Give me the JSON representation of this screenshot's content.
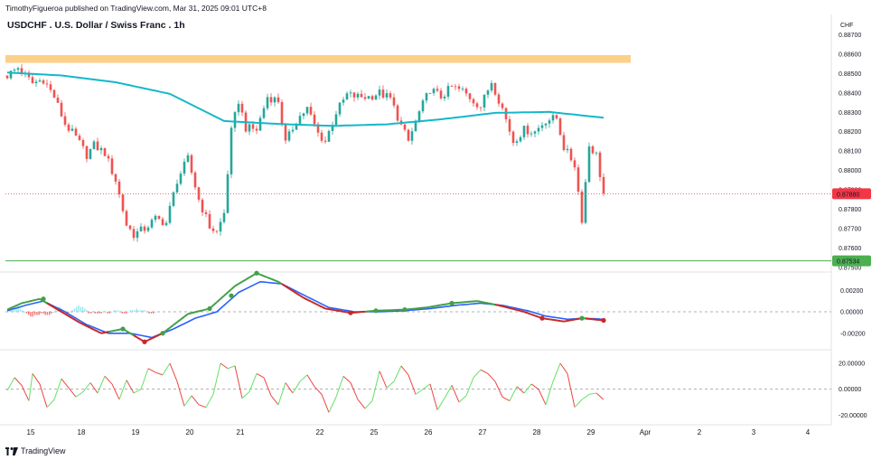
{
  "header": {
    "published_by": "TimothyFigueroa published on TradingView.com, Mar 31, 2025 09:01 UTC+8"
  },
  "chart_title": "USDCHF . U.S. Dollar / Swiss Franc . 1h",
  "footer": {
    "brand": "TradingView"
  },
  "colors": {
    "up": "#26a69a",
    "down": "#ef5350",
    "ma": "#14b8c8",
    "zone": "#fcd08a",
    "support": "#4caf50",
    "price_badge": "#f23645",
    "support_badge": "#4caf50",
    "macd_fast": "#43a047",
    "macd_slow": "#2962ff",
    "macd_red": "#c62828",
    "osc_up": "#66e066",
    "osc_down": "#ef4444"
  },
  "chart_data": [
    {
      "type": "candlestick",
      "title": "USDCHF . U.S. Dollar / Swiss Franc . 1h",
      "currency": "CHF",
      "y_ticks": [
        "0.88700",
        "0.88600",
        "0.88500",
        "0.88400",
        "0.88300",
        "0.88200",
        "0.88100",
        "0.88000",
        "0.87900",
        "0.87800",
        "0.87700",
        "0.87600",
        "0.87500"
      ],
      "ylim": [
        0.87495,
        0.8873
      ],
      "x_labels": [
        "15",
        "18",
        "19",
        "20",
        "21",
        "22",
        "25",
        "26",
        "27",
        "28",
        "29",
        "Apr",
        "2",
        "3",
        "4"
      ],
      "current_price": "0.87880",
      "support_level": "0.87534",
      "resistance_zone": [
        0.88555,
        0.88595
      ],
      "close_path": [
        [
          0,
          0.8849
        ],
        [
          3,
          0.8853
        ],
        [
          7,
          0.8845
        ],
        [
          10,
          0.8847
        ],
        [
          13,
          0.8838
        ],
        [
          16,
          0.8824
        ],
        [
          19,
          0.8817
        ],
        [
          22,
          0.8808
        ],
        [
          24,
          0.8813
        ],
        [
          27,
          0.8809
        ],
        [
          30,
          0.8795
        ],
        [
          33,
          0.8772
        ],
        [
          35,
          0.8767
        ],
        [
          38,
          0.877
        ],
        [
          41,
          0.8775
        ],
        [
          44,
          0.8773
        ],
        [
          47,
          0.8795
        ],
        [
          50,
          0.8806
        ],
        [
          53,
          0.8785
        ],
        [
          56,
          0.8771
        ],
        [
          58,
          0.8768
        ],
        [
          60,
          0.8778
        ],
        [
          62,
          0.882
        ],
        [
          64,
          0.8836
        ],
        [
          66,
          0.8822
        ],
        [
          69,
          0.8821
        ],
        [
          72,
          0.8838
        ],
        [
          75,
          0.8836
        ],
        [
          77,
          0.8814
        ],
        [
          80,
          0.8826
        ],
        [
          83,
          0.8832
        ],
        [
          86,
          0.8819
        ],
        [
          88,
          0.8815
        ],
        [
          91,
          0.883
        ],
        [
          94,
          0.8839
        ],
        [
          97,
          0.8838
        ],
        [
          100,
          0.8838
        ],
        [
          103,
          0.884
        ],
        [
          106,
          0.8837
        ],
        [
          109,
          0.8823
        ],
        [
          111,
          0.8815
        ],
        [
          114,
          0.883
        ],
        [
          117,
          0.8842
        ],
        [
          120,
          0.8838
        ],
        [
          123,
          0.8843
        ],
        [
          126,
          0.8841
        ],
        [
          129,
          0.8836
        ],
        [
          131,
          0.8833
        ],
        [
          134,
          0.8846
        ],
        [
          137,
          0.8832
        ],
        [
          140,
          0.8815
        ],
        [
          143,
          0.8821
        ],
        [
          146,
          0.882
        ],
        [
          149,
          0.8826
        ],
        [
          152,
          0.8827
        ],
        [
          154,
          0.8812
        ],
        [
          157,
          0.8803
        ],
        [
          159,
          0.8775
        ],
        [
          161,
          0.8813
        ],
        [
          163,
          0.8808
        ],
        [
          165,
          0.8788
        ]
      ],
      "ma_path": [
        [
          0,
          0.88505
        ],
        [
          15,
          0.8849
        ],
        [
          30,
          0.88455
        ],
        [
          45,
          0.88395
        ],
        [
          60,
          0.88255
        ],
        [
          75,
          0.8824
        ],
        [
          90,
          0.8823
        ],
        [
          105,
          0.88238
        ],
        [
          120,
          0.88264
        ],
        [
          135,
          0.88297
        ],
        [
          150,
          0.88302
        ],
        [
          165,
          0.88272
        ]
      ],
      "date_positions": [
        0,
        14,
        29,
        44,
        58,
        80,
        95,
        110,
        125,
        140,
        155,
        170,
        185,
        200,
        215
      ]
    },
    {
      "type": "line",
      "title": "",
      "y_ticks": [
        "0.00200",
        "0.00000",
        "-0.00200"
      ],
      "ylim": [
        -0.0032,
        0.0032
      ],
      "series": [
        {
          "values": [
            [
              0,
              0.0002
            ],
            [
              4,
              0.0008
            ],
            [
              9,
              0.0012
            ],
            [
              14,
              0.0002
            ],
            [
              20,
              -0.001
            ],
            [
              26,
              -0.002
            ],
            [
              32,
              -0.0016
            ],
            [
              38,
              -0.0028
            ],
            [
              43,
              -0.002
            ],
            [
              50,
              -0.0002
            ],
            [
              56,
              0.0003
            ],
            [
              63,
              0.0024
            ],
            [
              69,
              0.0036
            ],
            [
              75,
              0.0028
            ],
            [
              82,
              0.0013
            ],
            [
              88,
              0.0003
            ],
            [
              95,
              -0.0001
            ],
            [
              102,
              0.0001
            ],
            [
              110,
              0.0002
            ],
            [
              116,
              0.0004
            ],
            [
              123,
              0.0008
            ],
            [
              130,
              0.001
            ],
            [
              136,
              0.0006
            ],
            [
              143,
              0.0
            ],
            [
              148,
              -0.0006
            ],
            [
              154,
              -0.0009
            ],
            [
              159,
              -0.0006
            ],
            [
              165,
              -0.0008
            ]
          ]
        },
        {
          "values": [
            [
              0,
              0.0001
            ],
            [
              5,
              0.0006
            ],
            [
              10,
              0.001
            ],
            [
              16,
              0.0
            ],
            [
              22,
              -0.0012
            ],
            [
              28,
              -0.002
            ],
            [
              34,
              -0.002
            ],
            [
              40,
              -0.0024
            ],
            [
              46,
              -0.0016
            ],
            [
              52,
              -0.0006
            ],
            [
              58,
              0.0
            ],
            [
              64,
              0.0018
            ],
            [
              70,
              0.0028
            ],
            [
              76,
              0.0026
            ],
            [
              83,
              0.0014
            ],
            [
              89,
              0.0004
            ],
            [
              96,
              0.0
            ],
            [
              103,
              0.0
            ],
            [
              110,
              0.0001
            ],
            [
              117,
              0.0003
            ],
            [
              124,
              0.0006
            ],
            [
              131,
              0.0008
            ],
            [
              137,
              0.0006
            ],
            [
              144,
              0.0001
            ],
            [
              149,
              -0.0004
            ],
            [
              155,
              -0.0007
            ],
            [
              160,
              -0.0006
            ],
            [
              165,
              -0.0007
            ]
          ]
        }
      ],
      "histogram": [
        0,
        1,
        1,
        2,
        2,
        3,
        2,
        1,
        0,
        -1,
        -2,
        -3,
        -3,
        -2,
        -2,
        -2,
        -1,
        -1,
        -2,
        -2,
        -2,
        -1,
        0,
        1,
        2,
        3,
        2,
        1,
        -1,
        -1,
        0,
        1,
        2,
        3,
        4,
        3,
        3,
        2,
        1,
        -1,
        -1,
        0,
        -1,
        -1,
        -1,
        -1,
        0,
        0,
        -1,
        -1,
        0,
        1,
        1,
        1,
        0,
        -1,
        -1,
        -1,
        0,
        1,
        1,
        1,
        2,
        1,
        1,
        1,
        1,
        0,
        -1,
        -1,
        -1,
        0
      ],
      "markers": [
        [
          10,
          0.0012
        ],
        [
          32,
          -0.0016
        ],
        [
          38,
          -0.0028
        ],
        [
          43,
          -0.002
        ],
        [
          56,
          0.0003
        ],
        [
          62,
          0.0015
        ],
        [
          69,
          0.0036
        ],
        [
          95,
          -0.0001
        ],
        [
          102,
          0.0001
        ],
        [
          110,
          0.0002
        ],
        [
          123,
          0.0008
        ],
        [
          148,
          -0.0006
        ],
        [
          159,
          -0.0006
        ],
        [
          165,
          -0.0008
        ]
      ]
    },
    {
      "type": "line",
      "title": "",
      "y_ticks": [
        "20.00000",
        "0.00000",
        "-20.00000"
      ],
      "ylim": [
        -24,
        27
      ],
      "series": [
        {
          "values": [
            [
              0,
              -1
            ],
            [
              2,
              9
            ],
            [
              4,
              3
            ],
            [
              6,
              -9
            ],
            [
              7,
              12
            ],
            [
              9,
              4
            ],
            [
              11,
              -14
            ],
            [
              13,
              -8
            ],
            [
              15,
              8
            ],
            [
              17,
              1
            ],
            [
              19,
              -6
            ],
            [
              21,
              -2
            ],
            [
              23,
              5
            ],
            [
              25,
              -3
            ],
            [
              27,
              10
            ],
            [
              29,
              4
            ],
            [
              31,
              -8
            ],
            [
              33,
              7
            ],
            [
              35,
              -3
            ],
            [
              37,
              0
            ],
            [
              39,
              16
            ],
            [
              41,
              13
            ],
            [
              43,
              11
            ],
            [
              45,
              20
            ],
            [
              47,
              6
            ],
            [
              49,
              -13
            ],
            [
              51,
              -5
            ],
            [
              53,
              -12
            ],
            [
              55,
              -14
            ],
            [
              57,
              -4
            ],
            [
              59,
              20
            ],
            [
              61,
              16
            ],
            [
              63,
              18
            ],
            [
              65,
              -7
            ],
            [
              67,
              -2
            ],
            [
              69,
              12
            ],
            [
              71,
              9
            ],
            [
              73,
              -5
            ],
            [
              75,
              -12
            ],
            [
              77,
              5
            ],
            [
              79,
              -3
            ],
            [
              81,
              6
            ],
            [
              83,
              11
            ],
            [
              85,
              2
            ],
            [
              87,
              -4
            ],
            [
              89,
              -18
            ],
            [
              91,
              -6
            ],
            [
              93,
              10
            ],
            [
              95,
              5
            ],
            [
              97,
              -8
            ],
            [
              99,
              -15
            ],
            [
              101,
              -9
            ],
            [
              103,
              14
            ],
            [
              105,
              1
            ],
            [
              107,
              6
            ],
            [
              109,
              18
            ],
            [
              111,
              11
            ],
            [
              113,
              -4
            ],
            [
              115,
              0
            ],
            [
              117,
              4
            ],
            [
              119,
              -16
            ],
            [
              121,
              -7
            ],
            [
              123,
              3
            ],
            [
              125,
              -10
            ],
            [
              127,
              -5
            ],
            [
              129,
              9
            ],
            [
              131,
              15
            ],
            [
              133,
              12
            ],
            [
              135,
              6
            ],
            [
              137,
              -6
            ],
            [
              139,
              -9
            ],
            [
              141,
              2
            ],
            [
              143,
              -3
            ],
            [
              145,
              4
            ],
            [
              147,
              0
            ],
            [
              149,
              -12
            ],
            [
              151,
              6
            ],
            [
              153,
              20
            ],
            [
              155,
              12
            ],
            [
              157,
              -14
            ],
            [
              159,
              -8
            ],
            [
              161,
              -4
            ],
            [
              163,
              -3
            ],
            [
              165,
              -8
            ]
          ]
        }
      ]
    }
  ]
}
